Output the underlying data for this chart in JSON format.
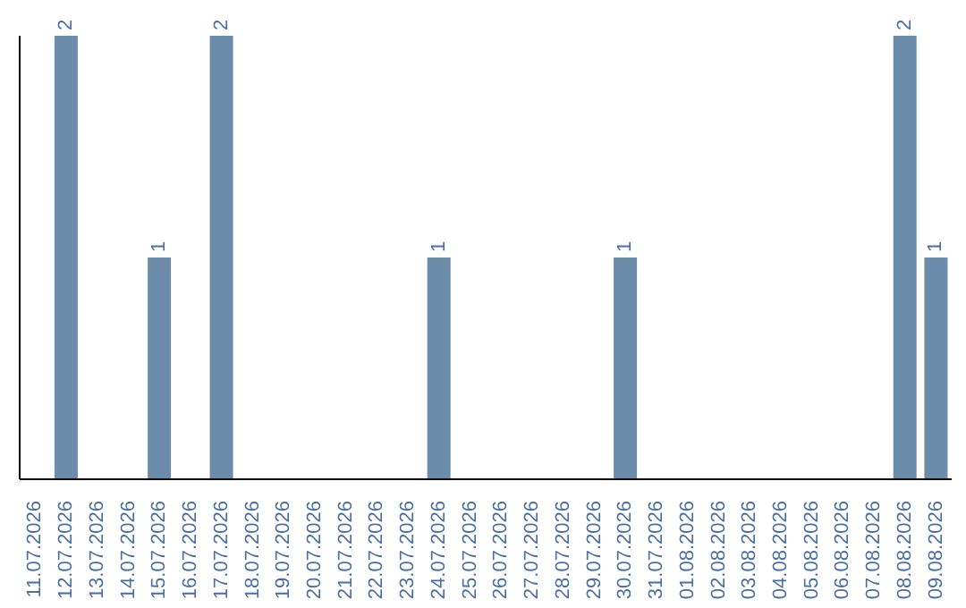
{
  "chart_data": {
    "type": "bar",
    "categories": [
      "11.07.2026",
      "12.07.2026",
      "13.07.2026",
      "14.07.2026",
      "15.07.2026",
      "16.07.2026",
      "17.07.2026",
      "18.07.2026",
      "19.07.2026",
      "20.07.2026",
      "21.07.2026",
      "22.07.2026",
      "23.07.2026",
      "24.07.2026",
      "25.07.2026",
      "26.07.2026",
      "27.07.2026",
      "28.07.2026",
      "29.07.2026",
      "30.07.2026",
      "31.07.2026",
      "01.08.2026",
      "02.08.2026",
      "03.08.2026",
      "04.08.2026",
      "05.08.2026",
      "06.08.2026",
      "07.08.2026",
      "08.08.2026",
      "09.08.2026"
    ],
    "values": [
      0,
      2,
      0,
      0,
      1,
      0,
      2,
      0,
      0,
      0,
      0,
      0,
      0,
      1,
      0,
      0,
      0,
      0,
      0,
      1,
      0,
      0,
      0,
      0,
      0,
      0,
      0,
      0,
      2,
      1
    ],
    "value_labels": [
      null,
      "2",
      null,
      null,
      "1",
      null,
      "2",
      null,
      null,
      null,
      null,
      null,
      null,
      "1",
      null,
      null,
      null,
      null,
      null,
      "1",
      null,
      null,
      null,
      null,
      null,
      null,
      null,
      null,
      "2",
      "1"
    ],
    "color": "#6b8cab",
    "grid": false,
    "legend": false
  }
}
